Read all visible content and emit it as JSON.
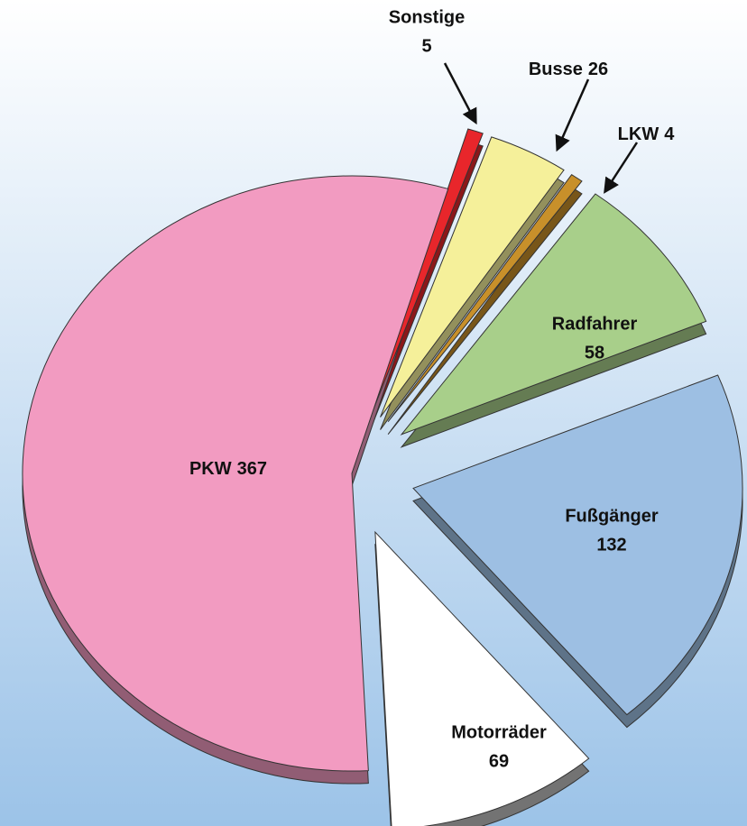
{
  "chart_data": {
    "type": "pie",
    "categories": [
      "Sonstige",
      "Busse",
      "LKW",
      "Radfahrer",
      "Fußgänger",
      "Motorräder",
      "PKW"
    ],
    "values": [
      5,
      26,
      4,
      58,
      132,
      69,
      367
    ],
    "colors": [
      "#e8262b",
      "#f5f09a",
      "#c8902a",
      "#a8cf8a",
      "#9dbfe3",
      "#ffffff",
      "#f29bc1"
    ]
  }
}
